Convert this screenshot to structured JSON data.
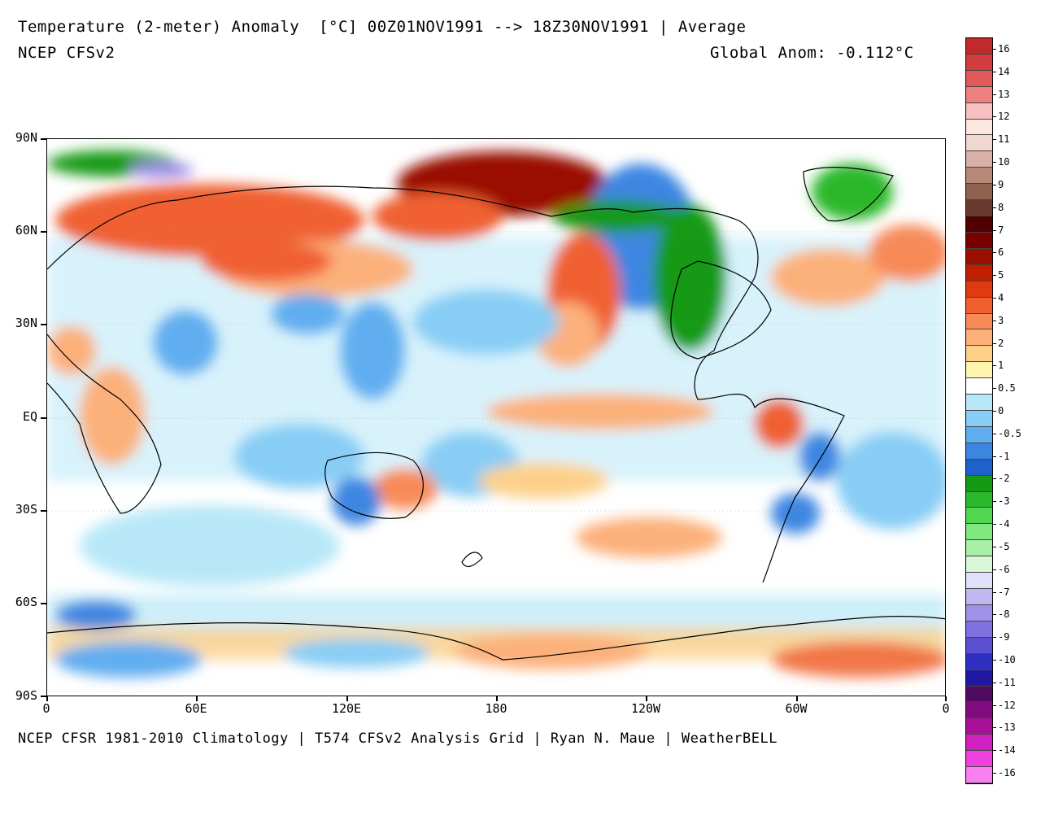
{
  "header": {
    "title": "Temperature (2-meter) Anomaly  [°C] 00Z01NOV1991 --> 18Z30NOV1991 | Average",
    "model": "NCEP CFSv2",
    "global_anom": "Global Anom: -0.112°C"
  },
  "footer": "NCEP CFSR 1981-2010 Climatology | T574 CFSv2 Analysis Grid | Ryan N. Maue | WeatherBELL",
  "lat_labels": [
    "90N",
    "60N",
    "30N",
    "EQ",
    "30S",
    "60S",
    "90S"
  ],
  "lon_labels": [
    "0",
    "60E",
    "120E",
    "180",
    "120W",
    "60W",
    "0"
  ],
  "colorbar": {
    "labels": [
      "16",
      "14",
      "13",
      "12",
      "11",
      "10",
      "9",
      "8",
      "7",
      "6",
      "5",
      "4",
      "3",
      "2",
      "1",
      "0.5",
      "0",
      "-0.5",
      "-1",
      "-2",
      "-3",
      "-4",
      "-5",
      "-6",
      "-7",
      "-8",
      "-9",
      "-10",
      "-11",
      "-12",
      "-13",
      "-14",
      "-16"
    ],
    "colors": [
      "#c02a2a",
      "#d23c3c",
      "#e05a5a",
      "#ee8080",
      "#f8c0c0",
      "#fde8e0",
      "#f0d8d0",
      "#d8b0a8",
      "#b88878",
      "#906050",
      "#6a3a30",
      "#500000",
      "#7a0000",
      "#9a1000",
      "#c02000",
      "#e03a10",
      "#f06030",
      "#f88a58",
      "#fcb07a",
      "#fdd08a",
      "#fff5b0",
      "#ffffff",
      "#b8e8f8",
      "#88cdf5",
      "#60aef0",
      "#3c86e2",
      "#1f60cc",
      "#149a14",
      "#2cb82c",
      "#50d650",
      "#80e880",
      "#a8f0a8",
      "#d8f8d8",
      "#e0e0f8",
      "#c0b8f0",
      "#a090e8",
      "#8070e0",
      "#5a50d0",
      "#3030c0",
      "#2018a0",
      "#500a60",
      "#800a80",
      "#a8109a",
      "#d020c0",
      "#f040e0",
      "#f880f0"
    ]
  },
  "map_colors": {
    "warm_light": "#fcb07a",
    "warm": "#f06030",
    "warm_deep": "#9a1000",
    "neutral": "#ffffff",
    "cool_light": "#b8e8f8",
    "cool": "#60aef0",
    "cool_deep": "#3c86e2",
    "green": "#149a14",
    "violet": "#a090e8"
  }
}
